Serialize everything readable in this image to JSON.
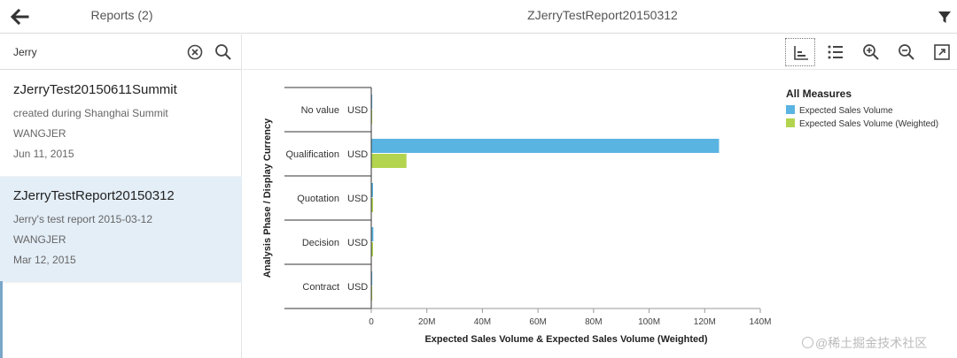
{
  "header": {
    "master_title": "Reports (2)",
    "detail_title": "ZJerryTestReport20150312",
    "back_icon": "arrow-left-icon",
    "filter_icon": "filter-icon"
  },
  "search": {
    "value": "Jerry",
    "clear_icon": "clear-circle-icon",
    "search_icon": "search-icon"
  },
  "reports": [
    {
      "title": "zJerryTest20150611Summit",
      "description": "created during Shanghai Summit",
      "owner": "WANGJER",
      "date": "Jun 11, 2015",
      "selected": false
    },
    {
      "title": "ZJerryTestReport20150312",
      "description": "Jerry's test report 2015-03-12",
      "owner": "WANGJER",
      "date": "Mar 12, 2015",
      "selected": true
    }
  ],
  "toolbar": {
    "icons": [
      "bar-chart-icon",
      "list-icon",
      "zoom-in-icon",
      "zoom-out-icon",
      "fullscreen-icon"
    ]
  },
  "colors": {
    "series_1": "#5ab4e2",
    "series_2": "#b2d44f",
    "selection": "#e4eef7"
  },
  "chart_data": {
    "type": "bar",
    "orientation": "horizontal",
    "categories": [
      "No value",
      "Qualification",
      "Quotation",
      "Decision",
      "Contract"
    ],
    "category_sub_labels": [
      "USD",
      "USD",
      "USD",
      "USD",
      "USD"
    ],
    "series": [
      {
        "name": "Expected Sales Volume",
        "values": [
          0,
          125000000,
          300000,
          600000,
          0
        ]
      },
      {
        "name": "Expected Sales Volume (Weighted)",
        "values": [
          0,
          12500000,
          30000,
          100000,
          0
        ]
      }
    ],
    "xlabel": "Expected Sales Volume & Expected Sales Volume (Weighted)",
    "ylabel": "Analysis Phase / Display Currency",
    "xlim": [
      0,
      140000000
    ],
    "xticks": [
      "0",
      "20M",
      "40M",
      "60M",
      "80M",
      "100M",
      "120M",
      "140M"
    ],
    "legend_title": "All Measures",
    "legend_position": "top-right",
    "grid": false
  },
  "watermark": "@稀土掘金技术社区"
}
